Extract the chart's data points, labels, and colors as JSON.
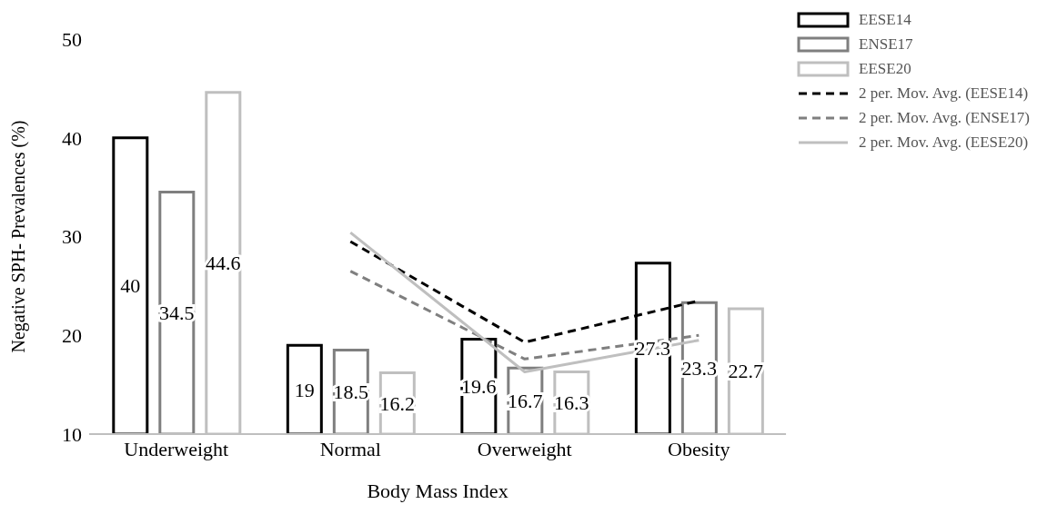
{
  "chart_data": {
    "type": "bar",
    "xlabel": "Body Mass Index",
    "ylabel": "Negative SPH- Prevalences (%)",
    "categories": [
      "Underweight",
      "Normal",
      "Overweight",
      "Obesity"
    ],
    "ylim": [
      10,
      50
    ],
    "yticks": [
      10,
      20,
      30,
      40,
      50
    ],
    "legend": "top right",
    "series": [
      {
        "name": "EESE14",
        "color": "#000000",
        "values": [
          40,
          19,
          19.6,
          27.3
        ],
        "value_labels": [
          "40",
          "19",
          "19.6",
          "27.3"
        ]
      },
      {
        "name": "ENSE17",
        "color": "#7f7f7f",
        "values": [
          34.5,
          18.5,
          16.7,
          23.3
        ],
        "value_labels": [
          "34.5",
          "18.5",
          "16.7",
          "23.3"
        ]
      },
      {
        "name": "EESE20",
        "color": "#bfbfbf",
        "values": [
          44.6,
          16.2,
          16.3,
          22.7
        ],
        "value_labels": [
          "44.6",
          "16.2",
          "16.3",
          "22.7"
        ]
      },
      {
        "name": "2 per. Mov. Avg. (EESE14)",
        "type": "line",
        "line_style": "dashed",
        "color": "#000000",
        "values": [
          null,
          29.5,
          19.3,
          23.5
        ]
      },
      {
        "name": "2 per. Mov. Avg. (ENSE17)",
        "type": "line",
        "line_style": "dashed",
        "color": "#7f7f7f",
        "values": [
          null,
          26.5,
          17.6,
          20.0
        ]
      },
      {
        "name": "2 per. Mov. Avg. (EESE20)",
        "type": "line",
        "line_style": "solid",
        "color": "#bfbfbf",
        "values": [
          null,
          30.4,
          16.3,
          19.5
        ]
      }
    ]
  }
}
